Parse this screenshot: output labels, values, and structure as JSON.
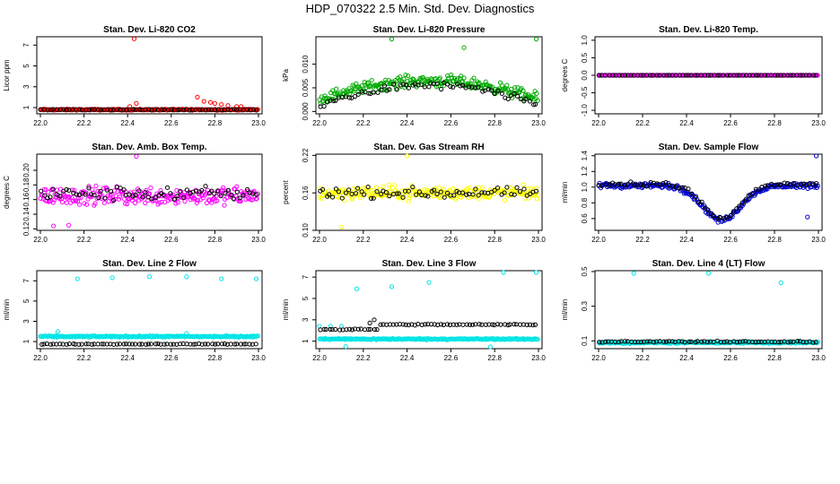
{
  "figure": {
    "title": "HDP_070322  2.5 Min. Std. Dev. Diagnostics"
  },
  "chart_data": [
    {
      "type": "scatter",
      "title": "Stan. Dev. Li-820 CO2",
      "ylabel": "Licor ppm",
      "xlabel": "",
      "xlim": [
        22.0,
        23.0
      ],
      "ylim": [
        0.4,
        7.8
      ],
      "x_ticks": [
        "22.0",
        "22.2",
        "22.4",
        "22.6",
        "22.8",
        "23.0"
      ],
      "y_ticks": [
        "1",
        "3",
        "5",
        "7"
      ],
      "series": [
        {
          "color": "#ff0000",
          "shape": "circle",
          "baseline": 0.8,
          "spread": 0.08,
          "features": [
            {
              "x": 22.43,
              "y": 7.6
            },
            {
              "x": 22.44,
              "y": 1.4
            },
            {
              "x": 22.41,
              "y": 1.1
            },
            {
              "x": 22.72,
              "y": 2.0
            },
            {
              "x": 22.75,
              "y": 1.6
            },
            {
              "x": 22.78,
              "y": 1.5
            },
            {
              "x": 22.8,
              "y": 1.4
            },
            {
              "x": 22.83,
              "y": 1.3
            },
            {
              "x": 22.86,
              "y": 1.2
            },
            {
              "x": 22.9,
              "y": 1.1
            },
            {
              "x": 22.92,
              "y": 1.1
            }
          ]
        },
        {
          "color": "#000000",
          "shape": "circle",
          "baseline": 0.8,
          "spread": 0.06,
          "features": []
        }
      ]
    },
    {
      "type": "scatter",
      "title": "Stan. Dev. Li-820 Pressure",
      "ylabel": "kPa",
      "xlabel": "",
      "xlim": [
        22.0,
        23.0
      ],
      "ylim": [
        -0.0005,
        0.0158
      ],
      "x_ticks": [
        "22.0",
        "22.2",
        "22.4",
        "22.6",
        "22.8",
        "23.0"
      ],
      "y_ticks": [
        "0.000",
        "0.005",
        "0.010"
      ],
      "series": [
        {
          "color": "#00aa00",
          "shape": "circle",
          "profile": "arch",
          "peak": 0.0065,
          "edge": 0.0025,
          "spread": 0.0018,
          "features": [
            {
              "x": 22.33,
              "y": 0.0153
            },
            {
              "x": 22.66,
              "y": 0.0135
            },
            {
              "x": 22.99,
              "y": 0.0153
            }
          ]
        },
        {
          "color": "#000000",
          "shape": "circle",
          "profile": "arch",
          "peak": 0.0055,
          "edge": 0.0012,
          "spread": 0.0012,
          "features": []
        }
      ]
    },
    {
      "type": "scatter",
      "title": "Stan. Dev. Li-820 Temp.",
      "ylabel": "degrees C",
      "xlabel": "",
      "xlim": [
        22.0,
        23.0
      ],
      "ylim": [
        -1.1,
        1.1
      ],
      "x_ticks": [
        "22.0",
        "22.2",
        "22.4",
        "22.6",
        "22.8",
        "23.0"
      ],
      "y_ticks": [
        "-1.0",
        "-0.5",
        "0.0",
        "0.5",
        "1.0"
      ],
      "series": [
        {
          "color": "#ff00ff",
          "shape": "circle",
          "baseline": 0.0,
          "spread": 0.0,
          "features": []
        },
        {
          "color": "#000000",
          "shape": "circle",
          "baseline": 0.0,
          "spread": 0.0,
          "features": []
        }
      ]
    },
    {
      "type": "scatter",
      "title": "Stan. Dev. Amb. Box Temp.",
      "ylabel": "degrees C",
      "xlabel": "",
      "xlim": [
        22.0,
        23.0
      ],
      "ylim": [
        0.118,
        0.222
      ],
      "x_ticks": [
        "22.0",
        "22.2",
        "22.4",
        "22.6",
        "22.8",
        "23.0"
      ],
      "y_ticks": [
        "0.12",
        "0.14",
        "0.16",
        "0.18",
        "0.20"
      ],
      "series": [
        {
          "color": "#ff00ff",
          "shape": "circle",
          "baseline": 0.165,
          "spread": 0.018,
          "features": [
            {
              "x": 22.44,
              "y": 0.219
            },
            {
              "x": 22.13,
              "y": 0.125
            },
            {
              "x": 22.06,
              "y": 0.124
            }
          ]
        },
        {
          "color": "#000000",
          "shape": "circle",
          "baseline": 0.168,
          "spread": 0.014,
          "features": []
        }
      ]
    },
    {
      "type": "scatter",
      "title": "Stan. Dev. Gas Stream RH",
      "ylabel": "percent",
      "xlabel": "",
      "xlim": [
        22.0,
        23.0
      ],
      "ylim": [
        0.1,
        0.222
      ],
      "x_ticks": [
        "22.0",
        "22.2",
        "22.4",
        "22.6",
        "22.8",
        "23.0"
      ],
      "y_ticks": [
        "0.10",
        "0.16",
        "0.22"
      ],
      "series": [
        {
          "color": "#ffff00",
          "shape": "circle",
          "baseline": 0.16,
          "spread": 0.016,
          "features": [
            {
              "x": 22.4,
              "y": 0.219
            },
            {
              "x": 22.1,
              "y": 0.105
            }
          ]
        },
        {
          "color": "#000000",
          "shape": "circle",
          "baseline": 0.16,
          "spread": 0.012,
          "features": []
        }
      ]
    },
    {
      "type": "scatter",
      "title": "Stan. Dev. Sample Flow",
      "ylabel": "ml/min",
      "xlabel": "",
      "xlim": [
        22.0,
        23.0
      ],
      "ylim": [
        0.45,
        1.42
      ],
      "x_ticks": [
        "22.0",
        "22.2",
        "22.4",
        "22.6",
        "22.8",
        "23.0"
      ],
      "y_ticks": [
        "0.6",
        "0.8",
        "1.0",
        "1.2",
        "1.4"
      ],
      "series": [
        {
          "color": "#0000cc",
          "shape": "circle",
          "profile": "dip",
          "level": 1.02,
          "low": 0.58,
          "spread": 0.05,
          "features": [
            {
              "x": 22.99,
              "y": 1.4
            },
            {
              "x": 22.95,
              "y": 0.62
            }
          ]
        },
        {
          "color": "#000000",
          "shape": "circle",
          "profile": "dip",
          "level": 1.04,
          "low": 0.6,
          "spread": 0.04,
          "features": []
        }
      ]
    },
    {
      "type": "scatter",
      "title": "Stan. Dev. Line 2 Flow",
      "ylabel": "ml/min",
      "xlabel": "",
      "xlim": [
        22.0,
        23.0
      ],
      "ylim": [
        0.3,
        8.0
      ],
      "x_ticks": [
        "22.0",
        "22.2",
        "22.4",
        "22.6",
        "22.8",
        "23.0"
      ],
      "y_ticks": [
        "1",
        "3",
        "5",
        "7"
      ],
      "series": [
        {
          "color": "#00e5e5",
          "shape": "circle",
          "baseline": 1.5,
          "spread": 0.1,
          "features": [
            {
              "x": 22.17,
              "y": 7.2
            },
            {
              "x": 22.33,
              "y": 7.3
            },
            {
              "x": 22.5,
              "y": 7.4
            },
            {
              "x": 22.67,
              "y": 7.4
            },
            {
              "x": 22.83,
              "y": 7.2
            },
            {
              "x": 22.99,
              "y": 7.2
            },
            {
              "x": 22.08,
              "y": 2.0
            },
            {
              "x": 22.67,
              "y": 1.8
            }
          ]
        },
        {
          "color": "#000000",
          "shape": "circle",
          "baseline": 0.75,
          "spread": 0.05,
          "features": []
        }
      ]
    },
    {
      "type": "scatter",
      "title": "Stan. Dev. Line 3 Flow",
      "ylabel": "ml/min",
      "xlabel": "",
      "xlim": [
        22.0,
        23.0
      ],
      "ylim": [
        0.3,
        7.6
      ],
      "x_ticks": [
        "22.0",
        "22.2",
        "22.4",
        "22.6",
        "22.8",
        "23.0"
      ],
      "y_ticks": [
        "1",
        "3",
        "5",
        "7"
      ],
      "series": [
        {
          "color": "#00e5e5",
          "shape": "circle",
          "baseline": 1.2,
          "spread": 0.1,
          "features": [
            {
              "x": 22.17,
              "y": 5.9
            },
            {
              "x": 22.33,
              "y": 6.1
            },
            {
              "x": 22.5,
              "y": 6.5
            },
            {
              "x": 22.84,
              "y": 7.5
            },
            {
              "x": 22.99,
              "y": 7.5
            },
            {
              "x": 22.0,
              "y": 2.4
            },
            {
              "x": 22.05,
              "y": 2.4
            },
            {
              "x": 22.1,
              "y": 2.4
            },
            {
              "x": 22.12,
              "y": 0.5
            },
            {
              "x": 22.78,
              "y": 0.4
            }
          ]
        },
        {
          "color": "#000000",
          "shape": "circle",
          "profile": "step",
          "level": 2.1,
          "high": 2.55,
          "step_at": 22.27,
          "spread": 0.08,
          "features": [
            {
              "x": 22.25,
              "y": 3.0
            },
            {
              "x": 22.23,
              "y": 2.7
            }
          ]
        }
      ]
    },
    {
      "type": "scatter",
      "title": "Stan. Dev. Line 4 (LT) Flow",
      "ylabel": "ml/min",
      "xlabel": "",
      "xlim": [
        22.0,
        23.0
      ],
      "ylim": [
        0.055,
        0.505
      ],
      "x_ticks": [
        "22.0",
        "22.2",
        "22.4",
        "22.6",
        "22.8",
        "23.0"
      ],
      "y_ticks": [
        "0.1",
        "0.3",
        "0.5"
      ],
      "series": [
        {
          "color": "#00e5e5",
          "shape": "circle",
          "baseline": 0.09,
          "spread": 0.008,
          "features": [
            {
              "x": 22.16,
              "y": 0.49
            },
            {
              "x": 22.5,
              "y": 0.49
            },
            {
              "x": 22.83,
              "y": 0.435
            }
          ]
        },
        {
          "color": "#000000",
          "shape": "circle",
          "baseline": 0.095,
          "spread": 0.006,
          "features": []
        }
      ]
    }
  ]
}
